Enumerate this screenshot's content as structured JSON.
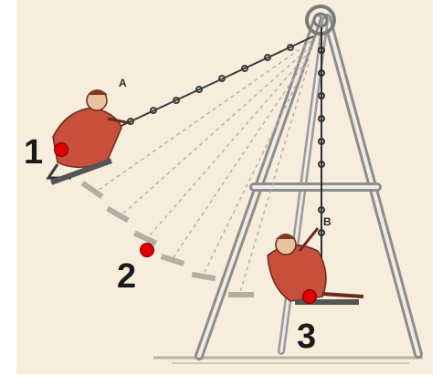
{
  "diagram": {
    "position_labels": {
      "a": "A",
      "b": "B"
    },
    "markers": [
      {
        "number": "1"
      },
      {
        "number": "2"
      },
      {
        "number": "3"
      }
    ],
    "colors": {
      "paper": "#f6eddc",
      "ink": "#3a3a3a",
      "frame": "#8a8a8a",
      "child_dress": "#c8503a",
      "marker_dot": "#e00000"
    }
  }
}
